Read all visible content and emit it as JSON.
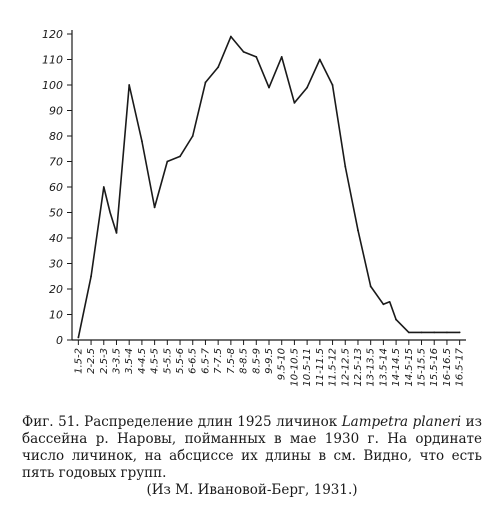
{
  "chart_data": {
    "type": "line",
    "title": "",
    "xlabel": "",
    "ylabel": "",
    "ylim": [
      0,
      120
    ],
    "yticks": [
      0,
      10,
      20,
      30,
      40,
      50,
      60,
      70,
      80,
      90,
      100,
      110,
      120
    ],
    "grid": false,
    "categories": [
      "1.5-2",
      "2-2.5",
      "2.5-3",
      "3-3.5",
      "3.5-4",
      "4-4.5",
      "4.5-5",
      "5-5.5",
      "5.5-6",
      "6-6.5",
      "6.5-7",
      "7-7.5",
      "7.5-8",
      "8-8.5",
      "8.5-9",
      "9-9.5",
      "9.5-10",
      "10-10.5",
      "10.5-11",
      "11-11.5",
      "11.5-12",
      "12-12.5",
      "12.5-13",
      "13-13.5",
      "13.5-14",
      "14-14.5",
      "14.5-15",
      "15-15.5",
      "15.5-16",
      "16-16.5",
      "16.5-17"
    ],
    "series": [
      {
        "values": [
          1,
          25,
          60,
          42,
          100,
          78,
          52,
          70,
          72,
          80,
          101,
          107,
          119,
          113,
          111,
          99,
          111,
          93,
          99,
          110,
          100,
          68,
          43,
          21,
          14,
          8,
          3,
          3,
          3,
          3,
          3
        ]
      }
    ],
    "extra_points": [
      {
        "category": "2.5-3",
        "value": 50
      },
      {
        "category": "13.5-14",
        "value": 15
      }
    ]
  },
  "caption": {
    "line1": "Фиг. 51. Распределение длин 1925 личинок ",
    "latin": "Lampetra planeri",
    "line2": " из бассейна р. Наровы, пойманных в мае 1930 г. На ординате число личинок, на абсциссе их длины в см. Видно, что есть пять годовых групп.",
    "source": "(Из М. Ивановой-Берг, 1931.)"
  }
}
